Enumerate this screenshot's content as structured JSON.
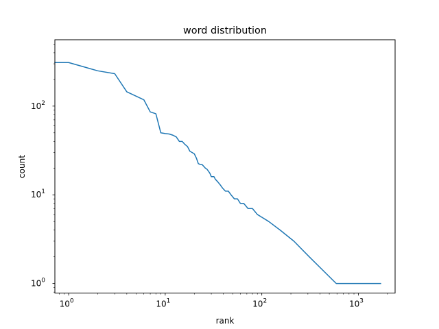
{
  "chart_data": {
    "type": "line",
    "title": "word distribution",
    "xlabel": "rank",
    "ylabel": "count",
    "xscale": "log",
    "yscale": "log",
    "xlim": [
      0.72,
      2400
    ],
    "ylim": [
      0.78,
      560
    ],
    "grid": false,
    "drawstyle": "mixed-steps",
    "x_ticks": [
      {
        "value": 1,
        "base": "10",
        "exp": "0"
      },
      {
        "value": 10,
        "base": "10",
        "exp": "1"
      },
      {
        "value": 100,
        "base": "10",
        "exp": "2"
      },
      {
        "value": 1000,
        "base": "10",
        "exp": "3"
      }
    ],
    "y_ticks": [
      {
        "value": 1,
        "base": "10",
        "exp": "0"
      },
      {
        "value": 10,
        "base": "10",
        "exp": "1"
      },
      {
        "value": 100,
        "base": "10",
        "exp": "2"
      }
    ],
    "series": [
      {
        "color": "#1f77b4",
        "x": [
          0.72,
          1,
          2,
          3,
          4,
          6,
          7,
          8,
          9,
          10,
          11,
          12,
          13,
          14,
          15,
          16,
          17,
          18,
          20,
          21,
          22,
          23,
          24,
          25,
          26,
          27,
          28,
          29,
          30,
          32,
          33,
          35,
          37,
          39,
          42,
          45,
          48,
          52,
          56,
          60,
          65,
          72,
          80,
          90,
          118,
          155,
          215,
          310,
          590,
          1700
        ],
        "y": [
          310,
          310,
          250,
          232,
          145,
          118,
          86,
          82,
          50,
          49,
          48.5,
          47,
          45,
          40,
          40,
          37,
          35,
          31,
          29,
          26,
          22.5,
          22,
          22,
          21,
          20,
          19.5,
          18.5,
          17.5,
          16,
          16,
          15,
          14,
          13,
          12,
          11,
          11,
          10,
          9,
          9,
          8,
          8,
          7,
          7,
          6,
          5,
          4,
          3,
          2,
          1,
          1
        ]
      }
    ],
    "x_minor_ticks": [
      0.8,
      0.9,
      2,
      3,
      4,
      5,
      6,
      7,
      8,
      9,
      20,
      30,
      40,
      50,
      60,
      70,
      80,
      90,
      200,
      300,
      400,
      500,
      600,
      700,
      800,
      900,
      2000
    ],
    "y_minor_ticks": [
      0.8,
      0.9,
      2,
      3,
      4,
      5,
      6,
      7,
      8,
      9,
      20,
      30,
      40,
      50,
      60,
      70,
      80,
      90,
      200,
      300,
      400,
      500
    ]
  }
}
